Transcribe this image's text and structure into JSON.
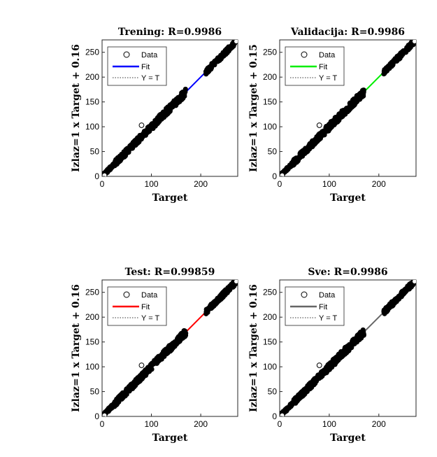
{
  "chart_data": [
    {
      "type": "scatter",
      "title": "Trening: R=0.9986",
      "xlabel": "Target",
      "ylabel": "Izlaz=1 x Target + 0.16",
      "xlim": [
        0,
        275
      ],
      "ylim": [
        0,
        275
      ],
      "xticks": [
        0,
        100,
        200
      ],
      "yticks": [
        0,
        50,
        100,
        150,
        200,
        250
      ],
      "fit_color": "#0000ff",
      "fit": {
        "slope": 1,
        "intercept": 0.16
      },
      "legend": [
        "Data",
        "Fit",
        "Y = T"
      ],
      "legend_position": "top-left"
    },
    {
      "type": "scatter",
      "title": "Validacija: R=0.9986",
      "xlabel": "Target",
      "ylabel": "Izlaz=1 x Target + 0.15",
      "xlim": [
        0,
        275
      ],
      "ylim": [
        0,
        275
      ],
      "xticks": [
        0,
        100,
        200
      ],
      "yticks": [
        0,
        50,
        100,
        150,
        200,
        250
      ],
      "fit_color": "#00ee00",
      "fit": {
        "slope": 1,
        "intercept": 0.15
      },
      "legend": [
        "Data",
        "Fit",
        "Y = T"
      ],
      "legend_position": "top-left"
    },
    {
      "type": "scatter",
      "title": "Test: R=0.99859",
      "xlabel": "Target",
      "ylabel": "Izlaz=1 x Target + 0.16",
      "xlim": [
        0,
        275
      ],
      "ylim": [
        0,
        275
      ],
      "xticks": [
        0,
        100,
        200
      ],
      "yticks": [
        0,
        50,
        100,
        150,
        200,
        250
      ],
      "fit_color": "#ff0000",
      "fit": {
        "slope": 1,
        "intercept": 0.16
      },
      "legend": [
        "Data",
        "Fit",
        "Y = T"
      ],
      "legend_position": "top-left"
    },
    {
      "type": "scatter",
      "title": "Sve: R=0.9986",
      "xlabel": "Target",
      "ylabel": "Izlaz=1 x Target + 0.16",
      "xlim": [
        0,
        275
      ],
      "ylim": [
        0,
        275
      ],
      "xticks": [
        0,
        100,
        200
      ],
      "yticks": [
        0,
        50,
        100,
        150,
        200,
        250
      ],
      "fit_color": "#666666",
      "fit": {
        "slope": 1,
        "intercept": 0.16
      },
      "legend": [
        "Data",
        "Fit",
        "Y = T"
      ],
      "legend_position": "top-left"
    }
  ]
}
